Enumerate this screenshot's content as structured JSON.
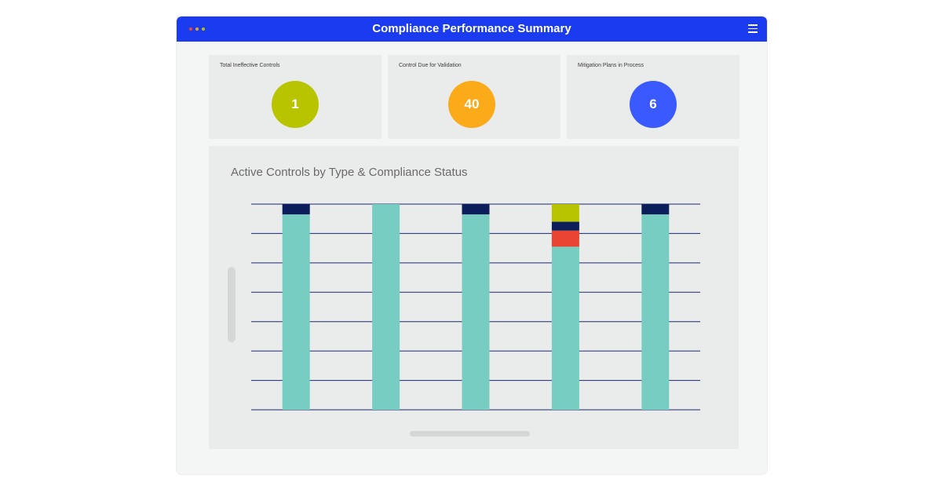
{
  "window": {
    "title": "Compliance Performance Summary",
    "dots": [
      "#f04a2c",
      "#f5a31a",
      "#b8c400"
    ],
    "menu_icon": "hamburger-menu-icon"
  },
  "kpis": [
    {
      "label": "Total Ineffective Controls",
      "value": "1",
      "color": "#b8c400"
    },
    {
      "label": "Control Due for Validation",
      "value": "40",
      "color": "#fbab19"
    },
    {
      "label": "Mitigation Plans in Process",
      "value": "6",
      "color": "#3a5aff"
    }
  ],
  "chart_data": {
    "type": "bar",
    "stacked": true,
    "title": "Active Controls by Type & Compliance Status",
    "categories": [
      "",
      "",
      "",
      "",
      ""
    ],
    "ylim": [
      0,
      7
    ],
    "gridlines": 8,
    "series": [
      {
        "color": "#78cdc2",
        "values": [
          6.65,
          7.0,
          6.65,
          5.55,
          6.65
        ]
      },
      {
        "color": "#e84533",
        "values": [
          0,
          0,
          0,
          0.55,
          0
        ]
      },
      {
        "color": "#0b1e5b",
        "values": [
          0.35,
          0,
          0.35,
          0.3,
          0.35
        ]
      },
      {
        "color": "#b8c400",
        "values": [
          0,
          0,
          0,
          0.6,
          0
        ]
      }
    ]
  },
  "colors": {
    "titlebar": "#1a3bf0",
    "gridline": "#1a2a6b"
  }
}
